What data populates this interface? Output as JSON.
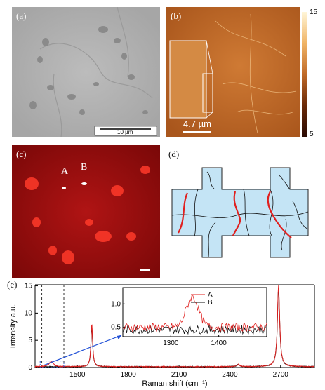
{
  "panels": {
    "a": {
      "label": "(a)",
      "scalebar_label": "10 µm"
    },
    "b": {
      "label": "(b)",
      "colorbar_max": "15",
      "colorbar_min": "5",
      "scalebar_label": "4.7 µm"
    },
    "c": {
      "label": "(c)",
      "point_a": "A",
      "point_b": "B"
    },
    "d": {
      "label": "(d)"
    },
    "e": {
      "label": "(e)"
    }
  },
  "chart_data": {
    "type": "line",
    "xlabel": "Raman shift (cm⁻¹)",
    "ylabel": "Intensity a.u.",
    "xlim": [
      1250,
      2900
    ],
    "ylim": [
      0,
      15.2
    ],
    "xticks": [
      1500,
      1800,
      2100,
      2400,
      2700
    ],
    "yticks": [
      0,
      5,
      10,
      15
    ],
    "dashed_markers_x": [
      1290,
      1420
    ],
    "series": [
      {
        "name": "A",
        "color": "#e0201f",
        "peaks": [
          {
            "x": 1345,
            "h": 1.0,
            "w": 28
          },
          {
            "x": 1585,
            "h": 7.8,
            "w": 12
          },
          {
            "x": 2450,
            "h": 0.4,
            "w": 20
          },
          {
            "x": 2688,
            "h": 15.0,
            "w": 16
          }
        ]
      },
      {
        "name": "B",
        "color": "#111111",
        "peaks": [
          {
            "x": 1585,
            "h": 7.4,
            "w": 12
          },
          {
            "x": 2450,
            "h": 0.4,
            "w": 20
          },
          {
            "x": 2688,
            "h": 14.6,
            "w": 16
          }
        ]
      }
    ],
    "inset": {
      "xlim": [
        1200,
        1500
      ],
      "ylim": [
        0.3,
        1.35
      ],
      "xticks": [
        1300,
        1400
      ],
      "yticks": [
        0.5,
        1.0
      ],
      "legend": [
        "A",
        "B"
      ]
    }
  }
}
